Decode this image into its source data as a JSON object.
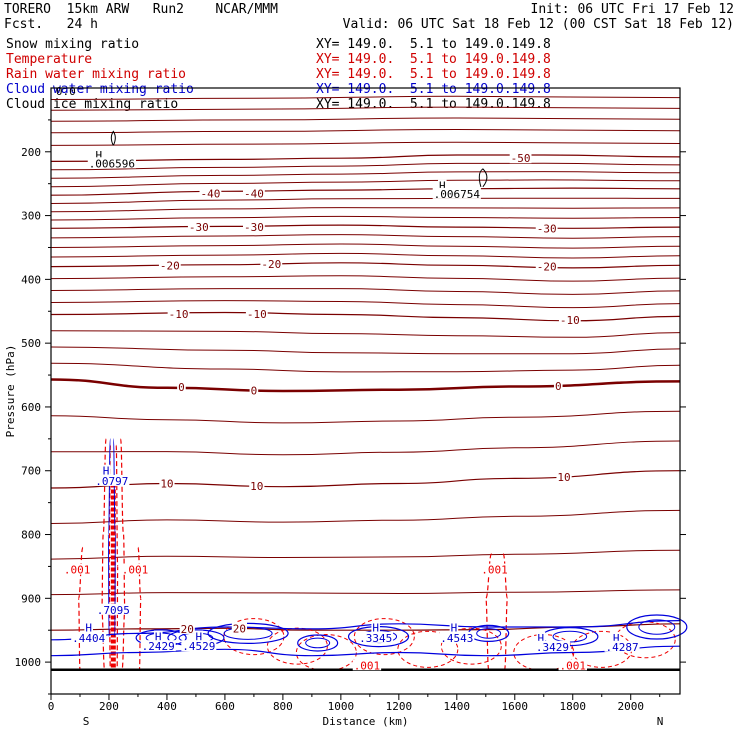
{
  "header": {
    "model": "TORERO  15km ARW   Run2    NCAR/MMM",
    "init": "Init: 06 UTC Fri 17 Feb 12",
    "fcst": "Fcst.   24 h",
    "valid": "Valid: 06 UTC Sat 18 Feb 12 (00 CST Sat 18 Feb 12)"
  },
  "fields": [
    {
      "name": "Snow mixing ratio",
      "xy": "XY= 149.0.  5.1 to 149.0.149.8",
      "color": "#000000"
    },
    {
      "name": "Temperature",
      "xy": "XY= 149.0.  5.1 to 149.0.149.8",
      "color": "#d00000"
    },
    {
      "name": "Rain water mixing ratio",
      "xy": "XY= 149.0.  5.1 to 149.0.149.8",
      "color": "#d00000"
    },
    {
      "name": "Cloud water mixing ratio",
      "xy": "XY= 149.0.  5.1 to 149.0.149.8",
      "color": "#0000cc"
    },
    {
      "name": "Cloud ice mixing ratio",
      "xy": "XY= 149.0.  5.1 to 149.0.149.8",
      "color": "#000000"
    }
  ],
  "chart_data": {
    "type": "cross-section contour",
    "xlabel": "Distance (km)",
    "ylabel": "Pressure (hPa)",
    "xlim": [
      0,
      2170
    ],
    "ylim": [
      100,
      1050
    ],
    "xticks": [
      0,
      200,
      400,
      600,
      800,
      1000,
      1200,
      1400,
      1600,
      1800,
      2000
    ],
    "yticks": [
      200,
      300,
      400,
      500,
      600,
      700,
      800,
      900,
      1000
    ],
    "direction_labels": {
      "left": "S",
      "right": "N"
    },
    "ground_pressure": 1012,
    "temperature_isotherms": [
      {
        "label": "-50",
        "points": [
          [
            0,
            215
          ],
          [
            600,
            212
          ],
          [
            1000,
            210
          ],
          [
            1400,
            205
          ],
          [
            1700,
            205
          ],
          [
            2170,
            208
          ]
        ]
      },
      {
        "label": "-40",
        "points": [
          [
            0,
            268
          ],
          [
            600,
            262
          ],
          [
            1000,
            260
          ],
          [
            1400,
            258
          ],
          [
            1800,
            257
          ],
          [
            2170,
            258
          ]
        ]
      },
      {
        "label": "-30",
        "points": [
          [
            0,
            320
          ],
          [
            600,
            317
          ],
          [
            1000,
            315
          ],
          [
            1400,
            318
          ],
          [
            1800,
            320
          ],
          [
            2170,
            318
          ]
        ]
      },
      {
        "label": "-20",
        "points": [
          [
            0,
            380
          ],
          [
            600,
            377
          ],
          [
            1000,
            374
          ],
          [
            1400,
            378
          ],
          [
            1800,
            382
          ],
          [
            2170,
            378
          ]
        ]
      },
      {
        "label": "-10",
        "points": [
          [
            0,
            455
          ],
          [
            600,
            452
          ],
          [
            1000,
            455
          ],
          [
            1400,
            460
          ],
          [
            1800,
            465
          ],
          [
            2170,
            458
          ]
        ]
      },
      {
        "label": "0",
        "points": [
          [
            0,
            557
          ],
          [
            400,
            570
          ],
          [
            800,
            575
          ],
          [
            1200,
            573
          ],
          [
            1600,
            568
          ],
          [
            2170,
            560
          ]
        ]
      },
      {
        "label": "10",
        "points": [
          [
            0,
            727
          ],
          [
            400,
            720
          ],
          [
            800,
            725
          ],
          [
            1200,
            720
          ],
          [
            1600,
            712
          ],
          [
            2170,
            700
          ]
        ]
      },
      {
        "label": "20",
        "points": [
          [
            0,
            950
          ],
          [
            300,
            948
          ],
          [
            600,
            947
          ],
          [
            900,
            950
          ],
          [
            1200,
            950
          ],
          [
            1500,
            949
          ],
          [
            1800,
            945
          ],
          [
            2170,
            940
          ]
        ]
      }
    ],
    "isotherm_labels": [
      {
        "text": "-50",
        "x": 1620,
        "p": 210
      },
      {
        "text": "-40",
        "x": 550,
        "p": 265
      },
      {
        "text": "-40",
        "x": 700,
        "p": 265
      },
      {
        "text": "-30",
        "x": 510,
        "p": 318
      },
      {
        "text": "-30",
        "x": 700,
        "p": 318
      },
      {
        "text": "-30",
        "x": 1710,
        "p": 320
      },
      {
        "text": "-20",
        "x": 410,
        "p": 378
      },
      {
        "text": "-20",
        "x": 760,
        "p": 376
      },
      {
        "text": "-20",
        "x": 1710,
        "p": 380
      },
      {
        "text": "-10",
        "x": 440,
        "p": 454
      },
      {
        "text": "-10",
        "x": 710,
        "p": 454
      },
      {
        "text": "-10",
        "x": 1790,
        "p": 464
      },
      {
        "text": "0",
        "x": 450,
        "p": 569
      },
      {
        "text": "0",
        "x": 700,
        "p": 574
      },
      {
        "text": "0",
        "x": 1750,
        "p": 567
      },
      {
        "text": "10",
        "x": 400,
        "p": 720
      },
      {
        "text": "10",
        "x": 710,
        "p": 724
      },
      {
        "text": "10",
        "x": 1770,
        "p": 710
      },
      {
        "text": "20",
        "x": 470,
        "p": 948
      },
      {
        "text": "20",
        "x": 650,
        "p": 947
      }
    ],
    "rain_labels": [
      {
        "text": ".001",
        "x": 90,
        "p": 855
      },
      {
        "text": ".001",
        "x": 290,
        "p": 855
      },
      {
        "text": ".001",
        "x": 1530,
        "p": 855
      },
      {
        "text": ".001",
        "x": 1800,
        "p": 1005
      },
      {
        "text": ".001",
        "x": 1090,
        "p": 1005
      }
    ],
    "cloud_water_labels": [
      {
        "text": "H",
        "x": 130,
        "p": 946
      },
      {
        "text": ".4404",
        "x": 130,
        "p": 962
      },
      {
        "text": ".7095",
        "x": 215,
        "p": 918
      },
      {
        "text": ".0797",
        "x": 210,
        "p": 716
      },
      {
        "text": "H",
        "x": 190,
        "p": 700
      },
      {
        "text": "H",
        "x": 370,
        "p": 960
      },
      {
        "text": ".2429",
        "x": 370,
        "p": 975
      },
      {
        "text": "H",
        "x": 510,
        "p": 960
      },
      {
        "text": ".4529",
        "x": 510,
        "p": 975
      },
      {
        "text": "H",
        "x": 1120,
        "p": 946
      },
      {
        "text": ".3345",
        "x": 1120,
        "p": 962
      },
      {
        "text": "H",
        "x": 1390,
        "p": 946
      },
      {
        "text": ".4543",
        "x": 1400,
        "p": 962
      },
      {
        "text": "H",
        "x": 1690,
        "p": 962
      },
      {
        "text": ".3429",
        "x": 1730,
        "p": 976
      },
      {
        "text": "H",
        "x": 1950,
        "p": 962
      },
      {
        "text": ".4287",
        "x": 1970,
        "p": 976
      }
    ],
    "snow_labels": [
      {
        "text": "H",
        "x": 165,
        "p": 205
      },
      {
        "text": ".006596",
        "x": 210,
        "p": 218
      },
      {
        "text": "H",
        "x": 1350,
        "p": 253
      },
      {
        "text": ".006754",
        "x": 1400,
        "p": 266
      }
    ],
    "top_marks": [
      {
        "text": "0.0",
        "x": 10,
        "p": 105
      }
    ]
  }
}
